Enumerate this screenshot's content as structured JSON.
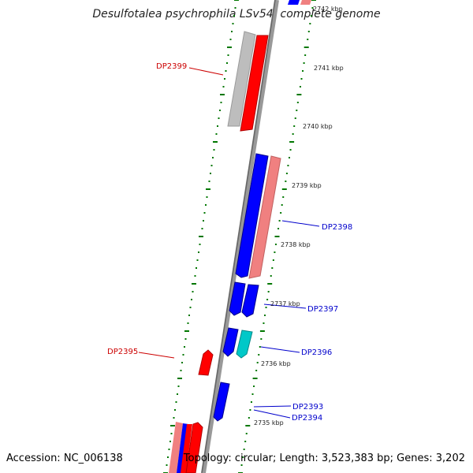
{
  "title": "Desulfotalea psychrophila LSv54, complete genome",
  "accession_text": "Accession: NC_006138",
  "topology_text": "Topology: circular; Length: 3,523,383 bp; Genes: 3,202",
  "colors": {
    "forward_gene": "#ff0000",
    "forward_light": "#f08080",
    "reverse_gene": "#0000ff",
    "rna": "#00c8c8",
    "other": "#c0c0c0",
    "backbone": "#888888",
    "ticks": "#007700",
    "label_red": "#cc0000",
    "label_blue": "#0000cc"
  },
  "scale_labels": [
    {
      "id": "2742",
      "text": "2742 kbp"
    },
    {
      "id": "2741",
      "text": "2741 kbp"
    },
    {
      "id": "2740",
      "text": "2740 kbp"
    },
    {
      "id": "2739",
      "text": "2739 kbp"
    },
    {
      "id": "2738",
      "text": "2738 kbp"
    },
    {
      "id": "2737",
      "text": "2737 kbp"
    },
    {
      "id": "2736",
      "text": "2736 kbp"
    },
    {
      "id": "2735",
      "text": "2735 kbp"
    }
  ],
  "gene_labels": [
    {
      "id": "DP2399",
      "text": "DP2399"
    },
    {
      "id": "DP2398",
      "text": "DP2398"
    },
    {
      "id": "DP2397",
      "text": "DP2397"
    },
    {
      "id": "DP2396",
      "text": "DP2396"
    },
    {
      "id": "DP2395",
      "text": "DP2395"
    },
    {
      "id": "DP2393",
      "text": "DP2393"
    },
    {
      "id": "DP2394",
      "text": "DP2394"
    }
  ]
}
